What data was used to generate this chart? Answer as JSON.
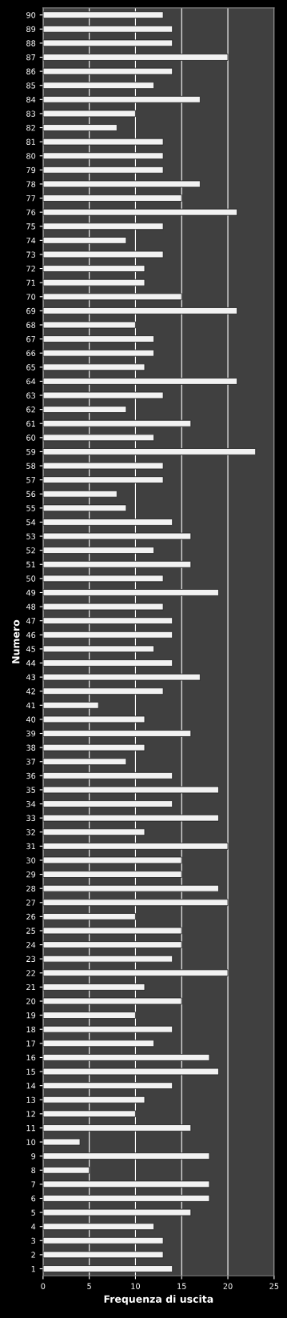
{
  "chart_data": {
    "type": "bar",
    "orientation": "horizontal",
    "xlabel": "Frequenza di uscita",
    "ylabel": "Numero",
    "categories": [
      "90",
      "89",
      "88",
      "87",
      "86",
      "85",
      "84",
      "83",
      "82",
      "81",
      "80",
      "79",
      "78",
      "77",
      "76",
      "75",
      "74",
      "73",
      "72",
      "71",
      "70",
      "69",
      "68",
      "67",
      "66",
      "65",
      "64",
      "63",
      "62",
      "61",
      "60",
      "59",
      "58",
      "57",
      "56",
      "55",
      "54",
      "53",
      "52",
      "51",
      "50",
      "49",
      "48",
      "47",
      "46",
      "45",
      "44",
      "43",
      "42",
      "41",
      "40",
      "39",
      "38",
      "37",
      "36",
      "35",
      "34",
      "33",
      "32",
      "31",
      "30",
      "29",
      "28",
      "27",
      "26",
      "25",
      "24",
      "23",
      "22",
      "21",
      "20",
      "19",
      "18",
      "17",
      "16",
      "15",
      "14",
      "13",
      "12",
      "11",
      "10",
      "9",
      "8",
      "7",
      "6",
      "5",
      "4",
      "3",
      "2",
      "1"
    ],
    "values": [
      13,
      14,
      14,
      20,
      14,
      12,
      17,
      10,
      8,
      13,
      13,
      13,
      17,
      15,
      21,
      13,
      9,
      13,
      11,
      11,
      15,
      21,
      10,
      12,
      12,
      11,
      21,
      13,
      9,
      16,
      12,
      23,
      13,
      13,
      8,
      9,
      14,
      16,
      12,
      16,
      13,
      19,
      13,
      14,
      14,
      12,
      14,
      17,
      13,
      6,
      11,
      16,
      11,
      9,
      14,
      19,
      14,
      19,
      11,
      20,
      15,
      15,
      19,
      20,
      10,
      15,
      15,
      14,
      20,
      11,
      15,
      10,
      14,
      12,
      18,
      19,
      14,
      11,
      10,
      16,
      4,
      18,
      5,
      18,
      18,
      16,
      12,
      13,
      13,
      14
    ],
    "color": "#f2f2f2",
    "xlim": [
      0,
      25
    ],
    "xticks": [
      0,
      5,
      10,
      15,
      20,
      25
    ],
    "grid": "x"
  }
}
